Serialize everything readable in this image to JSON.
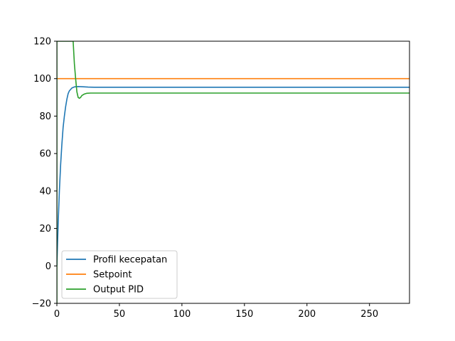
{
  "chart_data": {
    "type": "line",
    "title": "",
    "xlabel": "",
    "ylabel": "",
    "xlim": [
      0,
      282
    ],
    "ylim": [
      -20,
      120
    ],
    "xticks": [
      0,
      50,
      100,
      150,
      200,
      250
    ],
    "yticks": [
      -20,
      0,
      20,
      40,
      60,
      80,
      100,
      120
    ],
    "xtick_labels": [
      "0",
      "50",
      "100",
      "150",
      "200",
      "250"
    ],
    "ytick_labels": [
      "−20",
      "0",
      "20",
      "40",
      "60",
      "80",
      "100",
      "120"
    ],
    "grid": false,
    "legend_position": "lower-left",
    "series": [
      {
        "name": "Profil kecepatan",
        "color": "#1f77b4",
        "x": [
          0,
          1,
          2,
          3,
          4,
          5,
          6,
          7,
          8,
          9,
          10,
          12,
          14,
          17,
          20,
          25,
          30,
          40,
          60,
          100,
          150,
          200,
          250,
          282
        ],
        "y": [
          0,
          22,
          40,
          54,
          65,
          74,
          80,
          85,
          89,
          92,
          93.5,
          95,
          95.6,
          95.8,
          95.7,
          95.5,
          95.4,
          95.4,
          95.4,
          95.4,
          95.4,
          95.4,
          95.4,
          95.4
        ]
      },
      {
        "name": "Setpoint",
        "color": "#ff7f0e",
        "x": [
          0,
          282
        ],
        "y": [
          100,
          100
        ]
      },
      {
        "name": "Output PID",
        "color": "#2ca02c",
        "x": [
          0,
          0,
          0.4,
          13,
          14,
          15,
          16,
          17,
          18,
          19,
          20,
          22,
          24,
          27,
          30,
          40,
          60,
          100,
          150,
          200,
          250,
          282
        ],
        "y": [
          -20,
          120,
          120,
          120,
          108,
          100,
          93,
          90,
          89.5,
          90,
          91,
          91.8,
          92.2,
          92.3,
          92.3,
          92.3,
          92.3,
          92.3,
          92.3,
          92.3,
          92.3,
          92.3
        ]
      }
    ]
  }
}
